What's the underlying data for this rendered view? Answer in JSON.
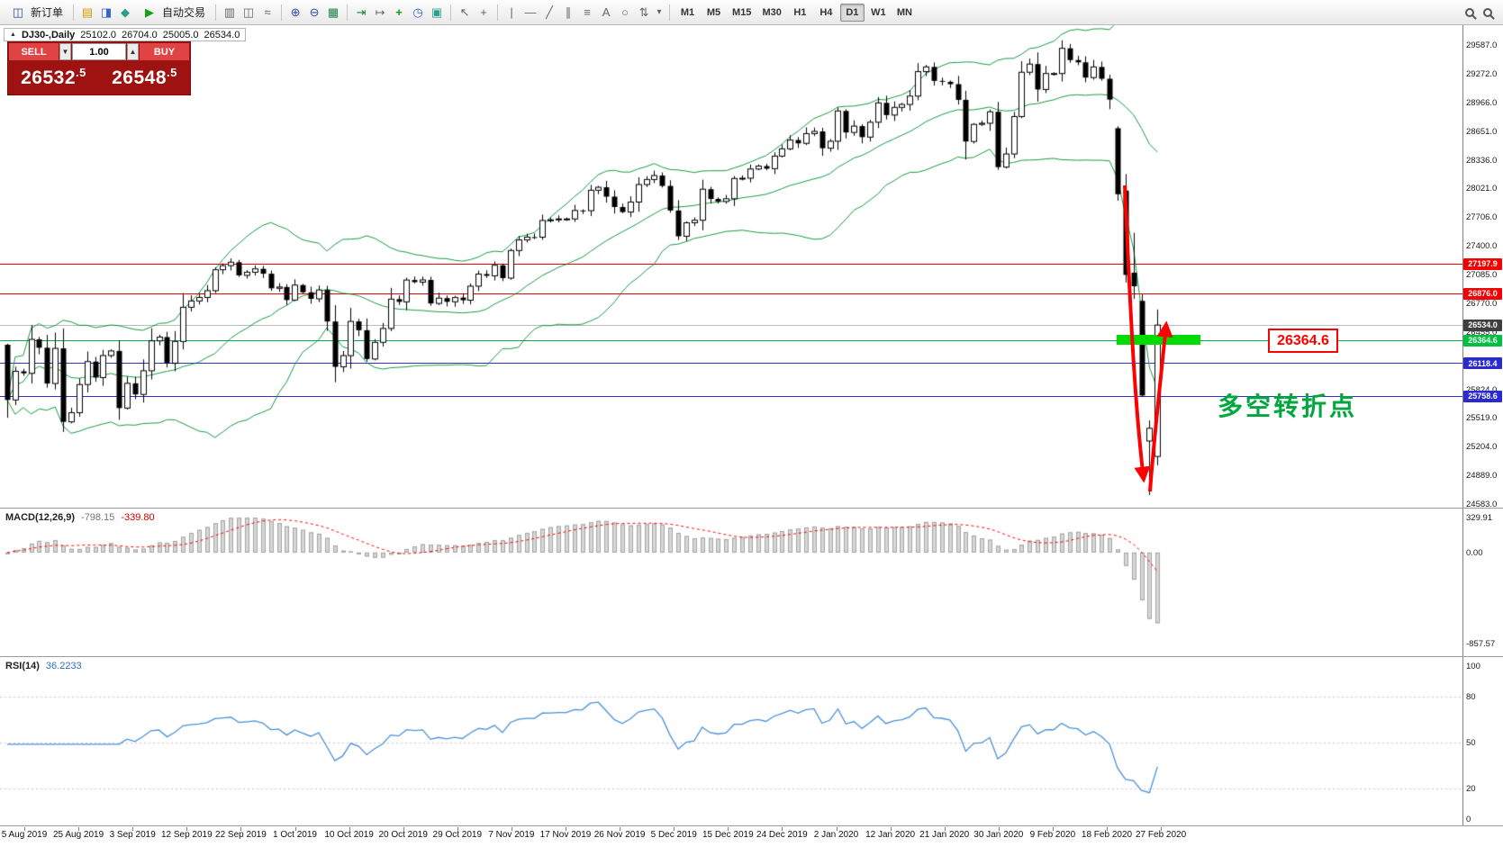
{
  "toolbar": {
    "new_order_label": "新订单",
    "auto_trading_label": "自动交易",
    "timeframes": [
      "M1",
      "M5",
      "M15",
      "M30",
      "H1",
      "H4",
      "D1",
      "W1",
      "MN"
    ],
    "active_timeframe": "D1"
  },
  "icons": {
    "new_order": "◫",
    "market_watch": "▤",
    "data_window": "◨",
    "navigator": "◆",
    "play": "▶",
    "bar_chart": "▥",
    "candle_chart": "◫",
    "line_chart": "≈",
    "zoom_in": "⊕",
    "zoom_out": "⊖",
    "tile": "▦",
    "auto_scroll": "⇥",
    "shift": "↦",
    "indicators": "+",
    "periods": "◷",
    "templates": "▣",
    "cursor": "↖",
    "crosshair": "+",
    "vline": "|",
    "hline": "—",
    "trendline": "╱",
    "channel": "∥",
    "fibonacci": "≡",
    "text": "A",
    "shapes": "○",
    "arrows": "⇅",
    "caret": "▾",
    "collapse": "▲"
  },
  "chart_header": {
    "symbol": "DJ30-,Daily",
    "open": "25102.0",
    "high": "26704.0",
    "low": "25005.0",
    "close": "26534.0"
  },
  "order_panel": {
    "sell_label": "SELL",
    "buy_label": "BUY",
    "volume": "1.00",
    "sell_price": "26532.5",
    "buy_price": "26548.5",
    "sell_price_main": "26532",
    "sell_price_frac": ".5",
    "buy_price_main": "26548",
    "buy_price_frac": ".5"
  },
  "price_axis": {
    "labels": [
      "29587.0",
      "29272.0",
      "28966.0",
      "28651.0",
      "28336.0",
      "28021.0",
      "27706.0",
      "27400.0",
      "27085.0",
      "26770.0",
      "26455.0",
      "26140.0",
      "25824.0",
      "25519.0",
      "25204.0",
      "24889.0",
      "24583.0"
    ]
  },
  "price_lines": [
    {
      "label": "27197.9",
      "value": 27197.9,
      "line_color": "#f40000",
      "tag_color": "#f40000"
    },
    {
      "label": "26876.0",
      "value": 26876.0,
      "line_color": "#f40000",
      "tag_color": "#f40000"
    },
    {
      "label": "26534.0",
      "value": 26534.0,
      "line_color": "#bcbcbc",
      "tag_color": "#3f3f3f"
    },
    {
      "label": "26364.6",
      "value": 26364.6,
      "line_color": "#00b050",
      "tag_color": "#00c040"
    },
    {
      "label": "26118.4",
      "value": 26118.4,
      "line_color": "#3333cc",
      "tag_color": "#2a2ad0"
    },
    {
      "label": "25758.6",
      "value": 25758.6,
      "line_color": "#3333cc",
      "tag_color": "#2a2ad0"
    }
  ],
  "annotations": {
    "price_label": "26364.6",
    "turning_point_text": "多空转折点",
    "highlight_green": "#00dc00",
    "arrow_red": "#ff0000"
  },
  "macd": {
    "label": "MACD(12,26,9)",
    "value_main": "-798.15",
    "value_signal": "-339.80",
    "axis": [
      "329.91",
      "0.00",
      "-857.57"
    ],
    "axis_values": [
      329.91,
      0,
      -857.57
    ]
  },
  "rsi": {
    "label": "RSI(14)",
    "value": "36.2233",
    "axis": [
      "100",
      "80",
      "50",
      "20",
      "0"
    ],
    "axis_values": [
      100,
      80,
      50,
      20,
      0
    ]
  },
  "time_axis": {
    "labels": [
      "5 Aug 2019",
      "25 Aug 2019",
      "3 Sep 2019",
      "12 Sep 2019",
      "22 Sep 2019",
      "1 Oct 2019",
      "10 Oct 2019",
      "20 Oct 2019",
      "29 Oct 2019",
      "7 Nov 2019",
      "17 Nov 2019",
      "26 Nov 2019",
      "5 Dec 2019",
      "15 Dec 2019",
      "24 Dec 2019",
      "2 Jan 2020",
      "12 Jan 2020",
      "21 Jan 2020",
      "30 Jan 2020",
      "9 Feb 2020",
      "18 Feb 2020",
      "27 Feb 2020"
    ]
  },
  "chart_data": [
    {
      "type": "candlestick",
      "title": "DJ30- Daily",
      "y_range": [
        24450,
        29800
      ],
      "y_tick_labels": [
        "29587.0",
        "29272.0",
        "28966.0",
        "28651.0",
        "28336.0",
        "28021.0",
        "27706.0",
        "27400.0",
        "27085.0",
        "26770.0",
        "26455.0",
        "26140.0",
        "25824.0",
        "25519.0",
        "25204.0",
        "24889.0",
        "24583.0"
      ],
      "x_tick_labels": [
        "5 Aug 2019",
        "25 Aug 2019",
        "3 Sep 2019",
        "12 Sep 2019",
        "22 Sep 2019",
        "1 Oct 2019",
        "10 Oct 2019",
        "20 Oct 2019",
        "29 Oct 2019",
        "7 Nov 2019",
        "17 Nov 2019",
        "26 Nov 2019",
        "5 Dec 2019",
        "15 Dec 2019",
        "24 Dec 2019",
        "2 Jan 2020",
        "12 Jan 2020",
        "21 Jan 2020",
        "30 Jan 2020",
        "9 Feb 2020",
        "18 Feb 2020",
        "27 Feb 2020"
      ],
      "last_ohlc": [
        25102.0,
        26704.0,
        25005.0,
        26534.0
      ],
      "levels": [
        27197.9,
        26876.0,
        26534.0,
        26364.6,
        26118.4,
        25758.6
      ],
      "overlays": [
        {
          "name": "Bollinger Bands",
          "period": 20,
          "deviation": 2,
          "color": "#169a40"
        }
      ],
      "closes": [
        25718,
        26030,
        26008,
        26378,
        26287,
        25897,
        26280,
        25479,
        25579,
        25886,
        26136,
        25962,
        26202,
        26252,
        25629,
        25899,
        25778,
        26036,
        26362,
        26403,
        26118,
        26355,
        26728,
        26797,
        26835,
        26909,
        27137,
        27182,
        27219,
        27076,
        27110,
        27147,
        27094,
        26935,
        26949,
        26807,
        26970,
        26891,
        26820,
        26917,
        26573,
        26079,
        26201,
        26574,
        26478,
        26164,
        26346,
        26497,
        26817,
        26787,
        27025,
        27002,
        27026,
        26770,
        26828,
        26788,
        26834,
        26805,
        26958,
        27090,
        27071,
        27186,
        27046,
        27347,
        27462,
        27493,
        27492,
        27674,
        27681,
        27691,
        27691,
        27783,
        27781,
        28004,
        28036,
        27934,
        27821,
        27766,
        27875,
        28066,
        28121,
        28164,
        28051,
        27783,
        27502,
        27649,
        27677,
        28015,
        27909,
        27881,
        27911,
        28132,
        28135,
        28235,
        28267,
        28239,
        28376,
        28455,
        28551,
        28515,
        28621,
        28645,
        28462,
        28538,
        28868,
        28634,
        28703,
        28583,
        28745,
        28956,
        28823,
        28907,
        28939,
        29030,
        29297,
        29348,
        29196,
        29186,
        29160,
        28989,
        28535,
        28722,
        28734,
        28859,
        28256,
        28399,
        28807,
        29290,
        29379,
        29102,
        29276,
        29276,
        29551,
        29423,
        29398,
        29232,
        29348,
        29219,
        28992,
        27960,
        27081,
        26957,
        25766,
        25409,
        26534
      ],
      "ohlc_overrides": {
        "0": [
          26320,
          26330,
          25523,
          25718
        ],
        "139": [
          28680,
          28700,
          27890,
          27960
        ],
        "140": [
          28000,
          28180,
          26998,
          27081
        ],
        "141": [
          27105,
          27540,
          26820,
          26957
        ],
        "142": [
          26798,
          26869,
          25752,
          25766
        ],
        "143": [
          25270,
          25494,
          24681,
          25409
        ],
        "144": [
          25102,
          26704,
          25005,
          26534
        ]
      }
    },
    {
      "type": "bar",
      "name": "MACD(12,26,9)",
      "params": [
        12,
        26,
        9
      ],
      "current_main": -798.15,
      "current_signal": -339.8,
      "y_range": [
        -857.57,
        329.91
      ],
      "derived_from": "closes: EMA12-EMA26 histogram, SMA9 signal",
      "colors": {
        "histogram": "#d6d6d6",
        "histogram_border": "#a4a4a4",
        "signal": "#ff0000"
      }
    },
    {
      "type": "line",
      "name": "RSI(14)",
      "period": 14,
      "current": 36.2233,
      "levels": [
        80,
        50,
        20
      ],
      "y_range": [
        0,
        100
      ],
      "derived_from": "closes: Wilder RSI 14",
      "colors": {
        "line": "#4a90d9"
      }
    }
  ],
  "colors": {
    "bollinger": "#169a40",
    "candle_up": "#ffffff",
    "candle_down": "#000000",
    "wick": "#000000"
  }
}
